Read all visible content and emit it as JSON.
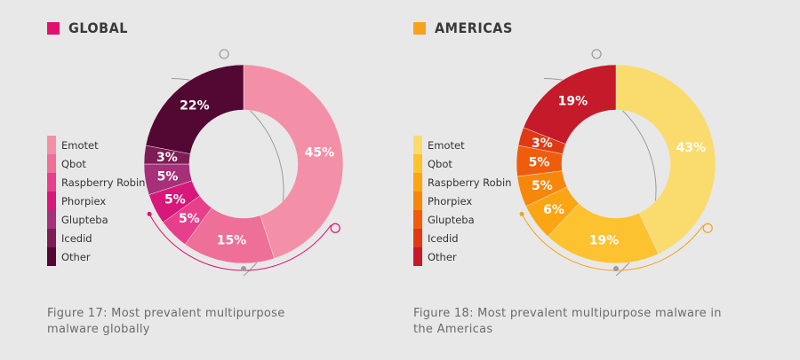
{
  "chart_data": [
    {
      "type": "pie",
      "title": "GLOBAL",
      "caption": "Figure 17: Most prevalent multipurpose malware globally",
      "categories": [
        "Emotet",
        "Qbot",
        "Raspberry Robin",
        "Phorpiex",
        "Glupteba",
        "Icedid",
        "Other"
      ],
      "values": [
        45,
        15,
        5,
        5,
        5,
        3,
        22
      ],
      "labels": [
        "45%",
        "15%",
        "5%",
        "5%",
        "5%",
        "3%",
        "22%"
      ],
      "colors": [
        "#f48fa8",
        "#ee6f97",
        "#e83f8c",
        "#d8177b",
        "#a63079",
        "#7e1d55",
        "#530833"
      ],
      "accent": "#e2106f"
    },
    {
      "type": "pie",
      "title": "AMERICAS",
      "caption": "Figure 18: Most prevalent multipurpose malware in the Americas",
      "categories": [
        "Emotet",
        "Qbot",
        "Raspberry Robin",
        "Phorpiex",
        "Glupteba",
        "Icedid",
        "Other"
      ],
      "values": [
        43,
        19,
        6,
        5,
        5,
        3,
        19
      ],
      "labels": [
        "43%",
        "19%",
        "6%",
        "5%",
        "5%",
        "3%",
        "19%"
      ],
      "colors": [
        "#fadb6e",
        "#fcc230",
        "#fba512",
        "#f6870b",
        "#ef5d0c",
        "#e03a14",
        "#c51a2a"
      ],
      "accent": "#f6a21b"
    }
  ]
}
